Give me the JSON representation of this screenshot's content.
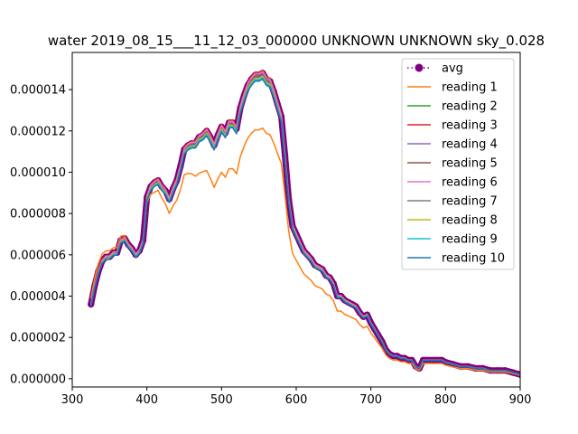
{
  "chart_data": {
    "type": "line",
    "title": "water 2019_08_15___11_12_03_000000 UNKNOWN UNKNOWN sky_0.028",
    "xlabel": "",
    "ylabel": "",
    "xlim": [
      300,
      900
    ],
    "ylim": [
      -4e-07,
      1.58e-05
    ],
    "x_ticks": [
      300,
      400,
      500,
      600,
      700,
      800,
      900
    ],
    "x_tick_labels": [
      "300",
      "400",
      "500",
      "600",
      "700",
      "800",
      "900"
    ],
    "y_ticks": [
      0,
      2e-06,
      4e-06,
      6e-06,
      8e-06,
      1e-05,
      1.2e-05,
      1.4e-05
    ],
    "y_tick_labels": [
      "0.000000",
      "0.000002",
      "0.000004",
      "0.000006",
      "0.000008",
      "0.000010",
      "0.000012",
      "0.000014"
    ],
    "grid": false,
    "legend_position": "upper-right",
    "x": [
      325,
      330,
      335,
      340,
      345,
      350,
      355,
      360,
      365,
      370,
      375,
      380,
      385,
      390,
      395,
      400,
      405,
      410,
      415,
      420,
      425,
      430,
      435,
      440,
      445,
      450,
      455,
      460,
      465,
      470,
      475,
      480,
      485,
      490,
      495,
      500,
      505,
      510,
      515,
      520,
      525,
      530,
      535,
      540,
      545,
      550,
      555,
      560,
      565,
      570,
      575,
      580,
      585,
      590,
      595,
      600,
      605,
      610,
      615,
      620,
      625,
      630,
      635,
      640,
      645,
      650,
      655,
      660,
      665,
      670,
      675,
      680,
      685,
      690,
      695,
      700,
      705,
      710,
      715,
      720,
      725,
      730,
      735,
      740,
      745,
      750,
      755,
      760,
      765,
      770,
      775,
      780,
      785,
      790,
      795,
      800,
      810,
      820,
      830,
      840,
      850,
      860,
      870,
      880,
      890,
      900
    ],
    "series": [
      {
        "name": "avg",
        "color": "#800080",
        "style": "dotted-marker",
        "values": [
          3.6e-06,
          4.5e-06,
          5.2e-06,
          5.7e-06,
          5.9e-06,
          5.9e-06,
          6.1e-06,
          6.1e-06,
          6.7e-06,
          6.8e-06,
          6.5e-06,
          6.3e-06,
          6e-06,
          6.2e-06,
          6.7e-06,
          8.8e-06,
          9.3e-06,
          9.5e-06,
          9.6e-06,
          9.3e-06,
          9.1e-06,
          8.7e-06,
          9.2e-06,
          9.6e-06,
          1.03e-05,
          1.11e-05,
          1.13e-05,
          1.14e-05,
          1.14e-05,
          1.17e-05,
          1.18e-05,
          1.2e-05,
          1.17e-05,
          1.13e-05,
          1.18e-05,
          1.22e-05,
          1.19e-05,
          1.24e-05,
          1.24e-05,
          1.21e-05,
          1.31e-05,
          1.37e-05,
          1.42e-05,
          1.45e-05,
          1.47e-05,
          1.47e-05,
          1.48e-05,
          1.45e-05,
          1.44e-05,
          1.39e-05,
          1.33e-05,
          1.27e-05,
          1.08e-05,
          8.7e-06,
          7.4e-06,
          7e-06,
          6.6e-06,
          6.2e-06,
          6e-06,
          5.8e-06,
          5.5e-06,
          5.4e-06,
          5.3e-06,
          5e-06,
          4.9e-06,
          4.6e-06,
          4e-06,
          4e-06,
          3.8e-06,
          3.7e-06,
          3.6e-06,
          3.5e-06,
          3.2e-06,
          3e-06,
          3.1e-06,
          2.7e-06,
          2.4e-06,
          2.1e-06,
          1.8e-06,
          1.4e-06,
          1.2e-06,
          1.1e-06,
          1.1e-06,
          1e-06,
          1e-06,
          9e-07,
          9e-07,
          6e-07,
          5e-07,
          9e-07,
          9e-07,
          9e-07,
          9e-07,
          9e-07,
          9e-07,
          8e-07,
          7e-07,
          6e-07,
          6e-07,
          5e-07,
          5e-07,
          4e-07,
          4e-07,
          4e-07,
          3e-07,
          2e-07
        ]
      },
      {
        "name": "reading 1",
        "color": "#ff7f0e",
        "style": "line",
        "offsets": [
          1.08,
          1.08,
          1.07,
          1.06,
          1.05,
          1.05,
          1.04,
          1.04,
          1.03,
          1.02,
          1.01,
          1.0,
          0.99,
          0.99,
          0.98,
          0.97,
          0.96,
          0.95,
          0.95,
          0.94,
          0.93,
          0.92,
          0.91,
          0.9,
          0.89,
          0.89,
          0.88,
          0.87,
          0.86,
          0.85,
          0.85,
          0.84,
          0.83,
          0.82,
          0.82,
          0.82
        ]
      },
      {
        "name": "reading 2",
        "color": "#2ca02c",
        "style": "line",
        "offsets": [
          1.0
        ]
      },
      {
        "name": "reading 3",
        "color": "#d62728",
        "style": "line",
        "offsets": [
          1.01
        ]
      },
      {
        "name": "reading 4",
        "color": "#9467bd",
        "style": "line",
        "offsets": [
          1.0
        ]
      },
      {
        "name": "reading 5",
        "color": "#8c564b",
        "style": "line",
        "offsets": [
          0.995
        ]
      },
      {
        "name": "reading 6",
        "color": "#e377c2",
        "style": "line",
        "offsets": [
          1.005
        ]
      },
      {
        "name": "reading 7",
        "color": "#7f7f7f",
        "style": "line",
        "offsets": [
          0.99
        ]
      },
      {
        "name": "reading 8",
        "color": "#bcbd22",
        "style": "line",
        "offsets": [
          0.99
        ]
      },
      {
        "name": "reading 9",
        "color": "#17becf",
        "style": "line",
        "offsets": [
          0.985
        ]
      },
      {
        "name": "reading 10",
        "color": "#1f77b4",
        "style": "line",
        "offsets": [
          0.98
        ]
      }
    ]
  }
}
